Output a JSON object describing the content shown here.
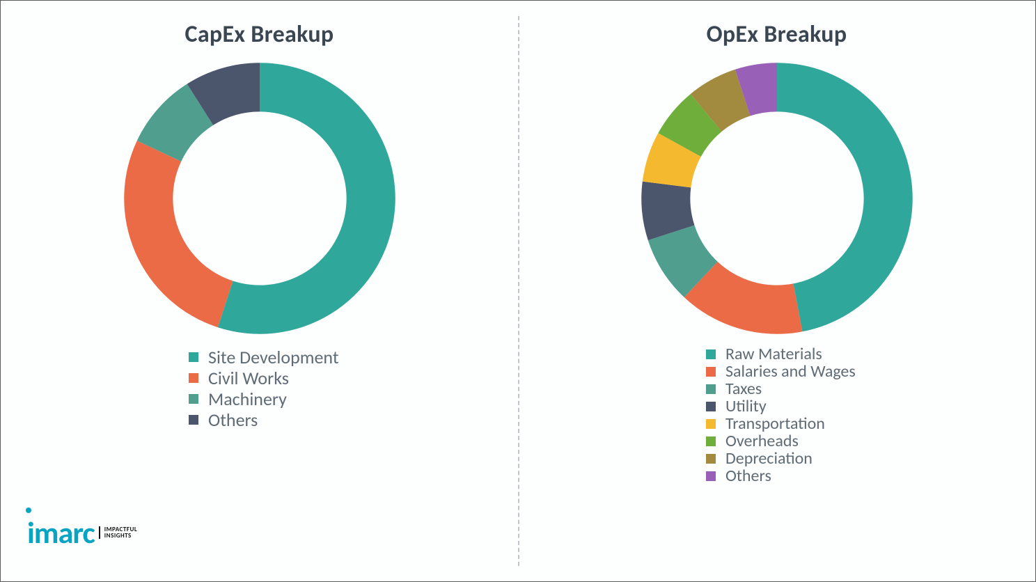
{
  "background_color": "#fdfefe",
  "border_color": "#5b5b5b",
  "divider_color": "#bfc6cb",
  "title_color": "#3a4752",
  "legend_text_color": "#5f6b75",
  "logo": {
    "word": "imarc",
    "word_color": "#0aa4c2",
    "tag_line1": "IMPACTFUL",
    "tag_line2": "INSIGHTS"
  },
  "capex": {
    "title": "CapEx Breakup",
    "type": "donut",
    "inner_radius_pct": 64,
    "series": [
      {
        "label": "Site Development",
        "value": 55,
        "color": "#2fa79a"
      },
      {
        "label": "Civil Works",
        "value": 27,
        "color": "#ec6b47"
      },
      {
        "label": "Machinery",
        "value": 9,
        "color": "#4f9e8e"
      },
      {
        "label": "Others",
        "value": 9,
        "color": "#4b556b"
      }
    ],
    "legend_fontsize": 26,
    "title_fontsize": 34,
    "swatch_size": 14
  },
  "opex": {
    "title": "OpEx Breakup",
    "type": "donut",
    "inner_radius_pct": 64,
    "series": [
      {
        "label": "Raw Materials",
        "value": 47,
        "color": "#2fa79a"
      },
      {
        "label": "Salaries and Wages",
        "value": 15,
        "color": "#ec6b47"
      },
      {
        "label": "Taxes",
        "value": 8,
        "color": "#4f9e8e"
      },
      {
        "label": "Utility",
        "value": 7,
        "color": "#4b556b"
      },
      {
        "label": "Transportation",
        "value": 6,
        "color": "#f4b92f"
      },
      {
        "label": "Overheads",
        "value": 6,
        "color": "#6fae3b"
      },
      {
        "label": "Depreciation",
        "value": 6,
        "color": "#a28a3e"
      },
      {
        "label": "Others",
        "value": 5,
        "color": "#9960b7"
      }
    ],
    "legend_fontsize": 24,
    "title_fontsize": 34,
    "swatch_size": 14
  }
}
